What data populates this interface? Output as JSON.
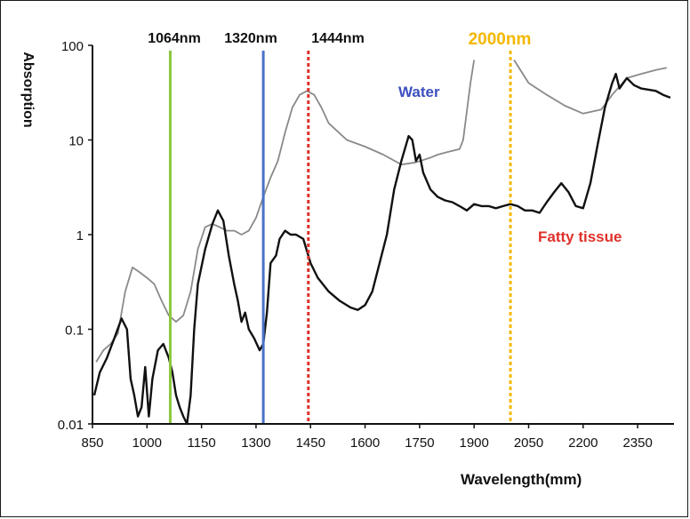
{
  "chart_data": {
    "type": "line",
    "xlabel": "Wavelength(mm)",
    "ylabel": "Absorption",
    "xlim": [
      850,
      2450
    ],
    "ylim": [
      0.01,
      100
    ],
    "yscale": "log",
    "grid": false,
    "x_ticks": [
      "850",
      "1000",
      "1150",
      "1300",
      "1450",
      "1600",
      "1750",
      "1900",
      "2050",
      "2200",
      "2350"
    ],
    "y_ticks": [
      "100",
      "10",
      "1",
      "0.1",
      "0.01"
    ],
    "vertical_lines": [
      {
        "x": 1064,
        "label": "1064nm",
        "color": "#8dc63f",
        "style": "solid"
      },
      {
        "x": 1320,
        "label": "1320nm",
        "color": "#4a72c8",
        "style": "solid"
      },
      {
        "x": 1444,
        "label": "1444nm",
        "color": "#e0302a",
        "style": "dotted"
      },
      {
        "x": 2000,
        "label": "2000nm",
        "color": "#f5b800",
        "style": "dotted"
      }
    ],
    "series": [
      {
        "name": "Water",
        "label_color": "#3c4fbf",
        "color": "#8a8a8a",
        "segments": [
          [
            [
              860,
              0.045
            ],
            [
              880,
              0.06
            ],
            [
              900,
              0.07
            ],
            [
              920,
              0.09
            ],
            [
              940,
              0.25
            ],
            [
              960,
              0.45
            ],
            [
              980,
              0.4
            ],
            [
              1000,
              0.35
            ],
            [
              1020,
              0.3
            ],
            [
              1040,
              0.2
            ],
            [
              1060,
              0.14
            ],
            [
              1080,
              0.12
            ],
            [
              1100,
              0.14
            ],
            [
              1120,
              0.25
            ],
            [
              1140,
              0.7
            ],
            [
              1160,
              1.2
            ],
            [
              1180,
              1.3
            ],
            [
              1200,
              1.2
            ],
            [
              1220,
              1.1
            ],
            [
              1240,
              1.1
            ],
            [
              1260,
              1.0
            ],
            [
              1280,
              1.1
            ],
            [
              1300,
              1.5
            ],
            [
              1320,
              2.5
            ],
            [
              1340,
              4.0
            ],
            [
              1360,
              6.0
            ],
            [
              1380,
              12.0
            ],
            [
              1400,
              22.0
            ],
            [
              1420,
              30.0
            ],
            [
              1440,
              33.0
            ],
            [
              1460,
              30.0
            ],
            [
              1480,
              22.0
            ],
            [
              1500,
              15.0
            ],
            [
              1550,
              10.0
            ],
            [
              1600,
              8.5
            ],
            [
              1650,
              7.0
            ],
            [
              1700,
              5.5
            ],
            [
              1740,
              5.8
            ],
            [
              1780,
              6.5
            ],
            [
              1800,
              7.0
            ],
            [
              1830,
              7.5
            ],
            [
              1860,
              8.0
            ],
            [
              1870,
              10.0
            ],
            [
              1880,
              20.0
            ],
            [
              1890,
              40.0
            ],
            [
              1900,
              70.0
            ]
          ],
          [
            [
              2010,
              70.0
            ],
            [
              2050,
              40.0
            ],
            [
              2100,
              30.0
            ],
            [
              2150,
              23.0
            ],
            [
              2200,
              19.0
            ],
            [
              2250,
              21.0
            ],
            [
              2280,
              30.0
            ],
            [
              2320,
              45.0
            ],
            [
              2360,
              50.0
            ],
            [
              2400,
              55.0
            ],
            [
              2430,
              58.0
            ]
          ]
        ]
      },
      {
        "name": "Fatty tissue",
        "label_color": "#e0302a",
        "color": "#111111",
        "segments": [
          [
            [
              855,
              0.02
            ],
            [
              870,
              0.035
            ],
            [
              890,
              0.05
            ],
            [
              910,
              0.08
            ],
            [
              930,
              0.13
            ],
            [
              945,
              0.1
            ],
            [
              955,
              0.03
            ],
            [
              965,
              0.02
            ],
            [
              975,
              0.012
            ],
            [
              985,
              0.015
            ],
            [
              995,
              0.04
            ],
            [
              1005,
              0.012
            ],
            [
              1015,
              0.03
            ],
            [
              1030,
              0.06
            ],
            [
              1045,
              0.07
            ],
            [
              1060,
              0.05
            ],
            [
              1070,
              0.035
            ],
            [
              1080,
              0.02
            ],
            [
              1090,
              0.015
            ],
            [
              1100,
              0.012
            ],
            [
              1110,
              0.01
            ],
            [
              1120,
              0.02
            ],
            [
              1130,
              0.1
            ],
            [
              1140,
              0.3
            ],
            [
              1160,
              0.7
            ],
            [
              1180,
              1.3
            ],
            [
              1195,
              1.8
            ],
            [
              1210,
              1.4
            ],
            [
              1225,
              0.6
            ],
            [
              1240,
              0.3
            ],
            [
              1250,
              0.2
            ],
            [
              1260,
              0.12
            ],
            [
              1270,
              0.15
            ],
            [
              1280,
              0.1
            ],
            [
              1295,
              0.08
            ],
            [
              1310,
              0.06
            ],
            [
              1320,
              0.07
            ],
            [
              1330,
              0.15
            ],
            [
              1340,
              0.5
            ],
            [
              1355,
              0.6
            ],
            [
              1365,
              0.9
            ],
            [
              1380,
              1.1
            ],
            [
              1395,
              1.0
            ],
            [
              1410,
              1.0
            ],
            [
              1430,
              0.9
            ],
            [
              1450,
              0.5
            ],
            [
              1470,
              0.35
            ],
            [
              1500,
              0.25
            ],
            [
              1530,
              0.2
            ],
            [
              1560,
              0.17
            ],
            [
              1580,
              0.16
            ],
            [
              1600,
              0.18
            ],
            [
              1620,
              0.25
            ],
            [
              1640,
              0.5
            ],
            [
              1660,
              1.0
            ],
            [
              1680,
              3.0
            ],
            [
              1700,
              6.0
            ],
            [
              1720,
              11.0
            ],
            [
              1730,
              10.0
            ],
            [
              1740,
              6.0
            ],
            [
              1750,
              7.0
            ],
            [
              1760,
              4.5
            ],
            [
              1780,
              3.0
            ],
            [
              1800,
              2.5
            ],
            [
              1820,
              2.3
            ],
            [
              1840,
              2.2
            ],
            [
              1860,
              2.0
            ],
            [
              1880,
              1.8
            ],
            [
              1900,
              2.1
            ],
            [
              1920,
              2.0
            ],
            [
              1940,
              2.0
            ],
            [
              1960,
              1.9
            ],
            [
              1980,
              2.0
            ],
            [
              2000,
              2.1
            ],
            [
              2020,
              2.0
            ],
            [
              2040,
              1.8
            ],
            [
              2060,
              1.8
            ],
            [
              2080,
              1.7
            ],
            [
              2100,
              2.2
            ],
            [
              2120,
              2.8
            ],
            [
              2140,
              3.5
            ],
            [
              2160,
              2.8
            ],
            [
              2180,
              2.0
            ],
            [
              2200,
              1.9
            ],
            [
              2220,
              3.5
            ],
            [
              2240,
              9.0
            ],
            [
              2260,
              22.0
            ],
            [
              2280,
              40.0
            ],
            [
              2290,
              50.0
            ],
            [
              2300,
              35.0
            ],
            [
              2320,
              45.0
            ],
            [
              2340,
              38.0
            ],
            [
              2360,
              35.0
            ],
            [
              2380,
              34.0
            ],
            [
              2400,
              33.0
            ],
            [
              2420,
              30.0
            ],
            [
              2440,
              28.0
            ]
          ]
        ]
      }
    ]
  }
}
